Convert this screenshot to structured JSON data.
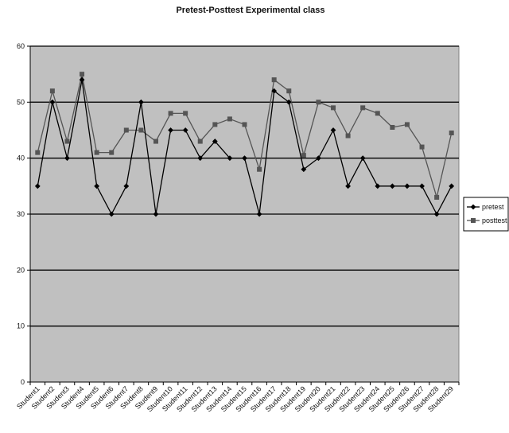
{
  "chart_data": {
    "type": "line",
    "title": "Pretest-Posttest Experimental class",
    "xlabel": "",
    "ylabel": "",
    "ylim": [
      0,
      60
    ],
    "yticks": [
      0,
      10,
      20,
      30,
      40,
      50,
      60
    ],
    "grid": true,
    "legend_position": "right",
    "categories": [
      "Student1",
      "Student2",
      "Student3",
      "Student4",
      "Student5",
      "Student6",
      "Student7",
      "Student8",
      "Student9",
      "Student10",
      "Student11",
      "Student12",
      "Student13",
      "Student14",
      "Student15",
      "Student16",
      "Student17",
      "Student18",
      "Student19",
      "Student20",
      "Student21",
      "Student22",
      "Student23",
      "Student24",
      "Student25",
      "Student26",
      "Student27",
      "Student28",
      "Student29"
    ],
    "series": [
      {
        "name": "pretest",
        "marker": "diamond",
        "color": "#000000",
        "values": [
          35,
          50,
          40,
          54,
          35,
          30,
          35,
          50,
          30,
          45,
          45,
          40,
          43,
          40,
          40,
          30,
          52,
          50,
          38,
          40,
          45,
          35,
          40,
          35,
          35,
          35,
          35,
          30,
          35
        ]
      },
      {
        "name": "posttest",
        "marker": "square",
        "color": "#555555",
        "values": [
          41,
          52,
          43,
          55,
          41,
          41,
          45,
          45,
          43,
          48,
          48,
          43,
          46,
          47,
          46,
          38,
          54,
          52,
          40.5,
          50,
          49,
          44,
          49,
          48,
          45.5,
          46,
          42,
          33,
          44.5
        ]
      }
    ]
  },
  "colors": {
    "plot_background": "#c0c0c0",
    "gridline": "#000000"
  }
}
